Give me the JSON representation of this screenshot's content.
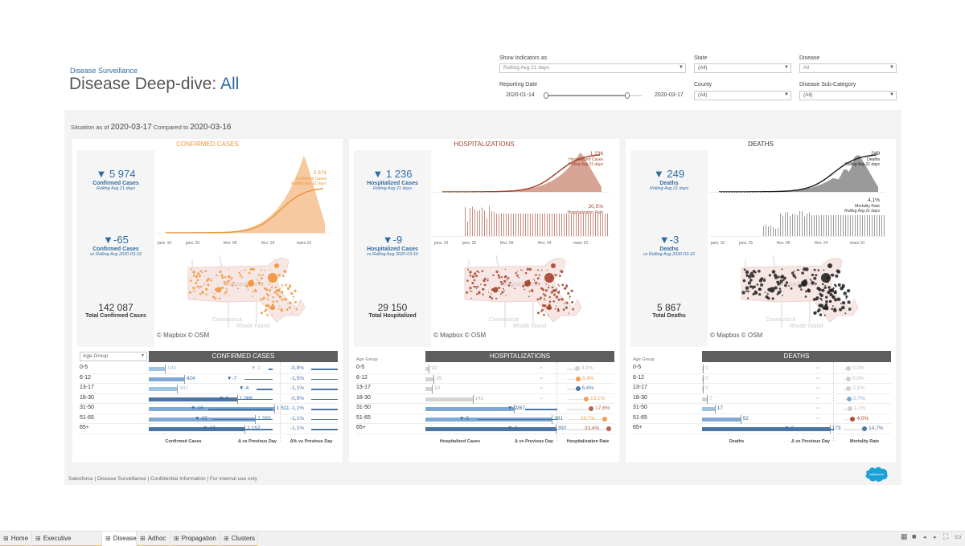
{
  "header": {
    "subtitle": "Disease Surveillance",
    "title_prefix": "Disease Deep-dive: ",
    "title_value": "All"
  },
  "filters": {
    "show_indicators": {
      "label": "Show Indicators as",
      "value": "Rolling Avg 21 days"
    },
    "state": {
      "label": "State",
      "value": "(All)"
    },
    "disease": {
      "label": "Disease",
      "value": "All"
    },
    "reporting_date": {
      "label": "Reporting Date",
      "start": "2020-01-14",
      "end": "2020-03-17",
      "selected_fraction_start": 0.0,
      "selected_fraction_end": 0.84
    },
    "county": {
      "label": "County",
      "value": "(All)"
    },
    "disease_sub_category": {
      "label": "Disease Sub-Category",
      "value": "(All)"
    }
  },
  "situation": {
    "prefix": "Situation as of",
    "date": "2020-03-17",
    "compared_label": "Compared to",
    "compared_date": "2020-03-16"
  },
  "x_axis_ticks": [
    "janv. 10",
    "janv. 25",
    "févr. 09",
    "févr. 24",
    "mars 10"
  ],
  "colors": {
    "confirmed": "#f0953a",
    "confirmed_area": "#f6c08f",
    "hospital": "#a5432b",
    "hospital_area": "#cf9383",
    "deaths": "#222222",
    "deaths_area": "#8f8f8f",
    "kpi_blue": "#2f6ca3",
    "header_gray": "#5e5e5e",
    "bar_light": "#9ec4e2",
    "bar_mid": "#7fa9d4",
    "bar_dark": "#4b75a3"
  },
  "cards": [
    {
      "id": "confirmed",
      "title": "CONFIRMED CASES",
      "kpi_main": {
        "value": "▼ 5 974",
        "label": "Confirmed Cases",
        "sub": "Rolling Avg 21 days"
      },
      "kpi_delta": {
        "value": "▼-65",
        "label": "Confirmed Cases",
        "sub": "vs Rolling Avg 2020-03-16"
      },
      "total": {
        "value": "142 087",
        "label": "Total Confirmed Cases"
      },
      "chart_annotation": {
        "value": "5 974",
        "line1": "Confirmed Cases",
        "line2": "Rolling Avg 21 days"
      },
      "map_credit": "© Mapbox © OSM",
      "table": {
        "header": "CONFIRMED CASES",
        "age_select": "Age Group",
        "columns": [
          "Confirmed Cases",
          "Δ vs Previous Day",
          "Δ% vs Previous Day"
        ],
        "rows": [
          {
            "age": "0-5",
            "value": "194",
            "delta": "▼-1",
            "pct": "-0,8%"
          },
          {
            "age": "6-12",
            "value": "424",
            "delta": "▼-7",
            "pct": "-1,5%"
          },
          {
            "age": "13-17",
            "value": "341",
            "delta": "▼-4",
            "pct": "-1,1%"
          },
          {
            "age": "18-30",
            "value": "1 066",
            "delta": "▼-9",
            "pct": "-0,9%"
          },
          {
            "age": "31-50",
            "value": "1 511",
            "delta": "▼-16",
            "pct": "-1,1%"
          },
          {
            "age": "51-65",
            "value": "1 283",
            "delta": "▼-15",
            "pct": "-1,1%"
          },
          {
            "age": "65+",
            "value": "1 157",
            "delta": "▼-13",
            "pct": "-1,1%"
          }
        ]
      }
    },
    {
      "id": "hospital",
      "title": "HOSPITALIZATIONS",
      "kpi_main": {
        "value": "▼ 1 236",
        "label": "Hospitalized Cases",
        "sub": "Rolling Avg 21 days"
      },
      "kpi_delta": {
        "value": "▼-9",
        "label": "Hospitalized Cases",
        "sub": "vs Rolling Avg  2020-03-16"
      },
      "total": {
        "value": "29 150",
        "label": "Total Hospitalized"
      },
      "chart_annotation": {
        "value": "1 236",
        "line1": "Hospitalized Cases",
        "line2": "Rolling Avg 21 days"
      },
      "rate_annotation": {
        "value": "20,5%",
        "line1": "Hospitalization Rate",
        "line2": ""
      },
      "map_credit": "© Mapbox © OSM",
      "table": {
        "header": "HOSPITALIZATIONS",
        "age_select": "Age Group",
        "columns": [
          "Hospitalized Cases",
          "Δ vs Previous Day",
          "Hospitalization Rate"
        ],
        "rows": [
          {
            "age": "0-5",
            "value": "10",
            "delta": "=",
            "pct": "4,9%"
          },
          {
            "age": "6-12",
            "value": "25",
            "delta": "=",
            "pct": "5,8%"
          },
          {
            "age": "13-17",
            "value": "19",
            "delta": "=",
            "pct": "5,6%"
          },
          {
            "age": "18-30",
            "value": "142",
            "delta": "=",
            "pct": "13,1%"
          },
          {
            "age": "31-50",
            "value": "267",
            "delta": "▼-2",
            "pct": "17,6%"
          },
          {
            "age": "51-65",
            "value": "381",
            "delta": "▼-5",
            "pct": "29,7%"
          },
          {
            "age": "65+",
            "value": "392",
            "delta": "▼-2",
            "pct": "33,4%"
          }
        ]
      }
    },
    {
      "id": "deaths",
      "title": "DEATHS",
      "kpi_main": {
        "value": "▼ 249",
        "label": "Deaths",
        "sub": "Rolling Avg 21 days"
      },
      "kpi_delta": {
        "value": "▼-3",
        "label": "Deaths",
        "sub": "vs Rolling Avg 2020-03-16"
      },
      "total": {
        "value": "5 867",
        "label": "Total Deaths"
      },
      "chart_annotation": {
        "value": "249",
        "line1": "Deaths",
        "line2": "Rolling Avg 21 days"
      },
      "rate_annotation": {
        "value": "4,1%",
        "line1": "Mortality Rate",
        "line2": "Rolling Avg 21 days"
      },
      "map_credit": "© Mapbox © OSM",
      "table": {
        "header": "DEATHS",
        "age_select": "Age Group",
        "columns": [
          "Deaths",
          "Δ vs Previous Day",
          "Mortality Rate"
        ],
        "rows": [
          {
            "age": "0-5",
            "value": "0",
            "delta": "=",
            "pct": "0,0%"
          },
          {
            "age": "6-12",
            "value": "0",
            "delta": "=",
            "pct": "0,0%"
          },
          {
            "age": "13-17",
            "value": "0",
            "delta": "=",
            "pct": "0,1%"
          },
          {
            "age": "18-30",
            "value": "7",
            "delta": "=",
            "pct": "0,7%"
          },
          {
            "age": "31-50",
            "value": "17",
            "delta": "=",
            "pct": "1,1%"
          },
          {
            "age": "51-65",
            "value": "52",
            "delta": "=",
            "pct": "4,0%"
          },
          {
            "age": "65+",
            "value": "173",
            "delta": "▼-2",
            "pct": "14,7%"
          }
        ]
      }
    }
  ],
  "footer": {
    "text": "Salesforce | Disease Surveillance | Confidential Information | For internal use only",
    "logo_text": "salesforce"
  },
  "tabs": [
    {
      "label": "Home",
      "active": false
    },
    {
      "label": "Executive Summary",
      "active": false
    },
    {
      "label": "Disease",
      "active": true
    },
    {
      "label": "Adhoc",
      "active": false
    },
    {
      "label": "Propagation",
      "active": false
    },
    {
      "label": "Clusters",
      "active": false
    }
  ],
  "map_labels": {
    "state1": "Massachusetts",
    "state2": "Connecticut",
    "state3": "Rhode Island"
  }
}
